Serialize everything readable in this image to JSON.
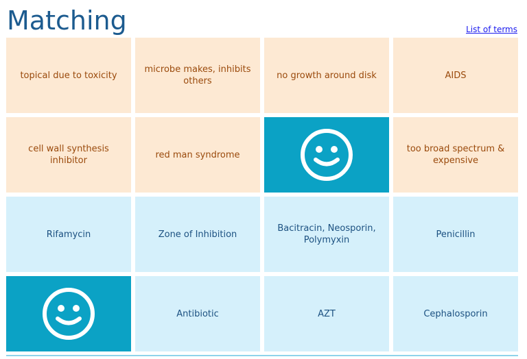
{
  "header": {
    "title": "Matching",
    "list_link": "List of terms"
  },
  "tiles": [
    {
      "kind": "definition",
      "text": "topical due to toxicity"
    },
    {
      "kind": "definition",
      "text": "microbe makes, inhibits others"
    },
    {
      "kind": "definition",
      "text": "no growth around disk"
    },
    {
      "kind": "definition",
      "text": "AIDS"
    },
    {
      "kind": "definition",
      "text": "cell wall synthesis inhibitor"
    },
    {
      "kind": "definition",
      "text": "red man syndrome"
    },
    {
      "kind": "matched",
      "icon": "smiley-icon"
    },
    {
      "kind": "definition",
      "text": "too broad spectrum & expensive"
    },
    {
      "kind": "term",
      "text": "Rifamycin"
    },
    {
      "kind": "term",
      "text": "Zone of Inhibition"
    },
    {
      "kind": "term",
      "text": "Bacitracin, Neosporin, Polymyxin"
    },
    {
      "kind": "term",
      "text": "Penicillin"
    },
    {
      "kind": "matched",
      "icon": "smiley-icon"
    },
    {
      "kind": "term",
      "text": "Antibiotic"
    },
    {
      "kind": "term",
      "text": "AZT"
    },
    {
      "kind": "term",
      "text": "Cephalosporin"
    }
  ],
  "colors": {
    "title": "#1c5b8f",
    "definition_bg": "#fde9d3",
    "definition_text": "#9a4a0c",
    "term_bg": "#d5f0fb",
    "term_text": "#1c5181",
    "matched_bg": "#0ba2c5"
  }
}
